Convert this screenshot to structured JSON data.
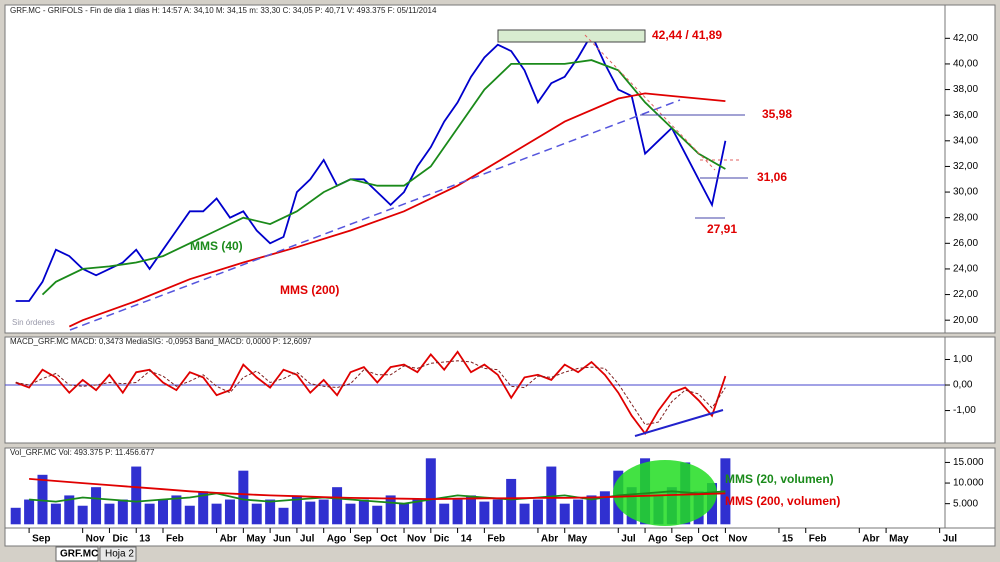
{
  "chart_data": [
    {
      "type": "line",
      "title": "GRF.MC - GRIFOLS - Fin de día 1 días H: 14:57 A: 34,10 M: 34,15 m: 33,30 C: 34,05 P: 40,71 V: 493.375 F: 05/11/2014",
      "annotations": [
        "42,44 / 41,89",
        "35,98",
        "31,06",
        "27,91",
        "MMS (40)",
        "MMS (200)",
        "Sin órdenes"
      ],
      "xlim": [
        -0.9,
        34.2
      ],
      "ylim": [
        19,
        44.6
      ],
      "yticks": [
        {
          "value": 20,
          "label": "20,00"
        },
        {
          "value": 22,
          "label": "22,00"
        },
        {
          "value": 24,
          "label": "24,00"
        },
        {
          "value": 26,
          "label": "26,00"
        },
        {
          "value": 28,
          "label": "28,00"
        },
        {
          "value": 30,
          "label": "30,00"
        },
        {
          "value": 32,
          "label": "32,00"
        },
        {
          "value": 34,
          "label": "34,00"
        },
        {
          "value": 36,
          "label": "36,00"
        },
        {
          "value": 38,
          "label": "38,00"
        },
        {
          "value": 40,
          "label": "40,00"
        },
        {
          "value": 42,
          "label": "42,00"
        }
      ],
      "x": [
        -0.5,
        0,
        0.5,
        1,
        1.5,
        2,
        2.5,
        3,
        3.5,
        4,
        4.5,
        5,
        5.5,
        6,
        6.5,
        7,
        7.5,
        8,
        8.5,
        9,
        9.5,
        10,
        10.5,
        11,
        11.5,
        12,
        12.5,
        13,
        13.5,
        14,
        14.5,
        15,
        15.5,
        16,
        16.5,
        17,
        17.5,
        18,
        18.5,
        19,
        19.5,
        20,
        20.5,
        21,
        21.5,
        22,
        22.5,
        23,
        23.5,
        24,
        24.5,
        25,
        25.5,
        26
      ],
      "series": [
        {
          "color": "#0000cc",
          "values": [
            21.5,
            21.5,
            23,
            25.5,
            25,
            24,
            23.5,
            24,
            24.5,
            25.5,
            24,
            25.5,
            27,
            28.5,
            28.5,
            29.5,
            28,
            28.5,
            27,
            26,
            26.5,
            30,
            31,
            32.5,
            30.5,
            31,
            31,
            30,
            29,
            30,
            32,
            33.5,
            35.5,
            37,
            39,
            40.5,
            41.5,
            41,
            39.5,
            37,
            38.5,
            39,
            40.5,
            42.3,
            40,
            38,
            37.5,
            33,
            34,
            35,
            33,
            31,
            29,
            34
          ]
        },
        {
          "color": "#1a8a1a",
          "x": [
            0.5,
            1,
            2,
            3,
            4,
            5,
            6,
            7,
            8,
            9,
            10,
            11,
            12,
            13,
            14,
            15,
            16,
            17,
            18,
            19,
            20,
            21,
            22,
            23,
            24,
            25,
            26
          ],
          "values": [
            22,
            23,
            24,
            24.2,
            24.5,
            25,
            26,
            27,
            28,
            27.5,
            28.5,
            30,
            31,
            30.5,
            30.5,
            32,
            35,
            38,
            40,
            40,
            40,
            40.3,
            39.5,
            37,
            35,
            33,
            31.8
          ]
        },
        {
          "color": "#e00000",
          "x": [
            1.5,
            2,
            4,
            6,
            8,
            10,
            12,
            14,
            16,
            18,
            20,
            22,
            23,
            24,
            26
          ],
          "values": [
            19.5,
            20,
            21.5,
            23.2,
            24.5,
            25.7,
            27,
            28.5,
            30.5,
            33,
            35.5,
            37.3,
            37.7,
            37.5,
            37.1
          ]
        }
      ]
    },
    {
      "type": "line",
      "title": "MACD_GRF.MC MACD: 0,3473 MediaSIG: -0,0953 Band_MACD: 0,0000 P: 12,6097",
      "xlim": [
        -0.9,
        34.2
      ],
      "ylim": [
        -2.27,
        1.88
      ],
      "yticks": [
        {
          "value": -1,
          "label": "-1,00"
        },
        {
          "value": 0,
          "label": "0,00"
        },
        {
          "value": 1,
          "label": "1,00"
        }
      ],
      "zero_line": true,
      "x": [
        -0.5,
        0,
        0.5,
        1,
        1.5,
        2,
        2.5,
        3,
        3.5,
        4,
        4.5,
        5,
        5.5,
        6,
        6.5,
        7,
        7.5,
        8,
        8.5,
        9,
        9.5,
        10,
        10.5,
        11,
        11.5,
        12,
        12.5,
        13,
        13.5,
        14,
        14.5,
        15,
        15.5,
        16,
        16.5,
        17,
        17.5,
        18,
        18.5,
        19,
        19.5,
        20,
        20.5,
        21,
        21.5,
        22,
        22.5,
        23,
        23.5,
        24,
        24.5,
        25,
        25.5,
        26
      ],
      "series": [
        {
          "color": "#e00000",
          "values": [
            0.1,
            -0.1,
            0.6,
            0.3,
            -0.3,
            0.2,
            -0.2,
            0.4,
            -0.3,
            0.5,
            0.6,
            0.1,
            -0.2,
            0.5,
            0.3,
            -0.4,
            -0.2,
            0.8,
            0.3,
            -0.1,
            0.6,
            0.4,
            -0.3,
            0.2,
            -0.4,
            0.5,
            0.7,
            0.1,
            0.7,
            0.8,
            0.5,
            1.2,
            0.6,
            1.3,
            0.5,
            0.8,
            0.4,
            -0.5,
            0.3,
            0.4,
            0.2,
            0.8,
            0.5,
            0.9,
            0.4,
            -0.3,
            -1.2,
            -1.9,
            -1.0,
            -0.3,
            -0.1,
            -0.6,
            -1.2,
            0.35
          ]
        },
        {
          "color": "#802020",
          "dashed": true,
          "values": [
            0.1,
            0,
            0.25,
            0.45,
            0,
            -0.05,
            0,
            0.1,
            0.05,
            0.1,
            0.55,
            0.35,
            -0.05,
            0.15,
            0.4,
            -0.05,
            -0.3,
            0.3,
            0.55,
            0.1,
            0.25,
            0.5,
            0.05,
            -0.05,
            -0.1,
            0.05,
            0.6,
            0.4,
            0.4,
            0.75,
            0.65,
            0.85,
            0.9,
            0.95,
            0.9,
            0.65,
            0.6,
            -0.05,
            -0.1,
            0.35,
            0.3,
            0.5,
            0.65,
            0.7,
            0.65,
            0.05,
            -0.75,
            -1.55,
            -1.45,
            -0.65,
            -0.2,
            -0.35,
            -0.9,
            -0.1
          ]
        }
      ]
    },
    {
      "type": "bar",
      "title": "Vol_GRF.MC Vol: 493.375 P: 11.456.677",
      "annotations": [
        "MMS (20, volumen)",
        "MMS (200, volumen)"
      ],
      "xlim": [
        -0.9,
        34.2
      ],
      "ylim": [
        -900,
        18500
      ],
      "yticks": [
        {
          "value": 5000,
          "label": "5.000"
        },
        {
          "value": 10000,
          "label": "10.000"
        },
        {
          "value": 15000,
          "label": "15.000"
        }
      ],
      "xticks": [
        {
          "value": 0,
          "label": "Sep"
        },
        {
          "value": 2,
          "label": "Nov"
        },
        {
          "value": 3,
          "label": "Dic"
        },
        {
          "value": 4,
          "label": "13"
        },
        {
          "value": 5,
          "label": "Feb"
        },
        {
          "value": 7,
          "label": "Abr"
        },
        {
          "value": 8,
          "label": "May"
        },
        {
          "value": 9,
          "label": "Jun"
        },
        {
          "value": 10,
          "label": "Jul"
        },
        {
          "value": 11,
          "label": "Ago"
        },
        {
          "value": 12,
          "label": "Sep"
        },
        {
          "value": 13,
          "label": "Oct"
        },
        {
          "value": 14,
          "label": "Nov"
        },
        {
          "value": 15,
          "label": "Dic"
        },
        {
          "value": 16,
          "label": "14"
        },
        {
          "value": 17,
          "label": "Feb"
        },
        {
          "value": 19,
          "label": "Abr"
        },
        {
          "value": 20,
          "label": "May"
        },
        {
          "value": 22,
          "label": "Jul"
        },
        {
          "value": 23,
          "label": "Ago"
        },
        {
          "value": 24,
          "label": "Sep"
        },
        {
          "value": 25,
          "label": "Oct"
        },
        {
          "value": 26,
          "label": "Nov"
        },
        {
          "value": 28,
          "label": "15"
        },
        {
          "value": 29,
          "label": "Feb"
        },
        {
          "value": 31,
          "label": "Abr"
        },
        {
          "value": 32,
          "label": "May"
        },
        {
          "value": 34,
          "label": "Jul"
        }
      ],
      "x": [
        -0.5,
        0,
        0.5,
        1,
        1.5,
        2,
        2.5,
        3,
        3.5,
        4,
        4.5,
        5,
        5.5,
        6,
        6.5,
        7,
        7.5,
        8,
        8.5,
        9,
        9.5,
        10,
        10.5,
        11,
        11.5,
        12,
        12.5,
        13,
        13.5,
        14,
        14.5,
        15,
        15.5,
        16,
        16.5,
        17,
        17.5,
        18,
        18.5,
        19,
        19.5,
        20,
        20.5,
        21,
        21.5,
        22,
        22.5,
        23,
        23.5,
        24,
        24.5,
        25,
        25.5,
        26
      ],
      "color": "#3030d0",
      "values": [
        4000,
        6000,
        12000,
        5000,
        7000,
        4500,
        9000,
        5000,
        6000,
        14000,
        5000,
        6000,
        7000,
        4500,
        8000,
        5000,
        6000,
        13000,
        5000,
        6000,
        4000,
        7000,
        5500,
        6000,
        9000,
        5000,
        6000,
        4500,
        7000,
        5000,
        6000,
        16000,
        5000,
        6000,
        7000,
        5500,
        6000,
        11000,
        5000,
        6000,
        14000,
        5000,
        6000,
        7000,
        8000,
        13000,
        9000,
        16000,
        7000,
        9000,
        15000,
        8000,
        10000,
        16000
      ],
      "series": [
        {
          "color": "#1a8a1a",
          "x": [
            0,
            1,
            2,
            3,
            4,
            5,
            6,
            7,
            8,
            9,
            10,
            11,
            12,
            13,
            14,
            15,
            16,
            17,
            18,
            19,
            20,
            21,
            22,
            23,
            24,
            25,
            26
          ],
          "values": [
            6000,
            5500,
            6500,
            6000,
            5500,
            6000,
            6500,
            7500,
            6000,
            5500,
            6000,
            6500,
            6000,
            5500,
            5000,
            6000,
            7000,
            6500,
            6000,
            6500,
            7000,
            6000,
            7000,
            7500,
            8000,
            7500,
            8000
          ]
        },
        {
          "color": "#e00000",
          "x": [
            0,
            1,
            2,
            3,
            4,
            5,
            6,
            7,
            8,
            9,
            10,
            11,
            12,
            13,
            14,
            15,
            16,
            17,
            18,
            19,
            20,
            21,
            22,
            23,
            24,
            25,
            26
          ],
          "values": [
            11000,
            10500,
            10000,
            9500,
            9000,
            8500,
            8000,
            7600,
            7300,
            7000,
            6800,
            6600,
            6400,
            6300,
            6200,
            6100,
            6200,
            6300,
            6300,
            6400,
            6400,
            6500,
            6700,
            6900,
            7100,
            7300,
            7500
          ]
        }
      ]
    }
  ],
  "tabs": [
    "GRF.MC",
    "Hoja 2"
  ]
}
